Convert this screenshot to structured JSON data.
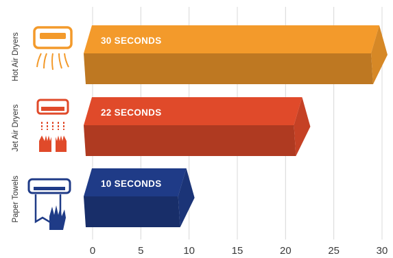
{
  "chart_data": {
    "type": "bar",
    "orientation": "horizontal",
    "style": "3d",
    "categories": [
      "Hot Air Dryers",
      "Jet Air Dryers",
      "Paper Towels"
    ],
    "values": [
      30,
      22,
      10
    ],
    "data_labels": [
      "30 SECONDS",
      "22 SECONDS",
      "10 SECONDS"
    ],
    "category_icons": [
      "hot-air-dryer-icon",
      "jet-air-dryer-icon",
      "paper-towel-dispenser-icon"
    ],
    "colors": [
      "#f39a2b",
      "#e04a2a",
      "#1f3b87"
    ],
    "xlim": [
      0,
      30
    ],
    "xticks": [
      0,
      5,
      10,
      15,
      20,
      25,
      30
    ],
    "grid": true,
    "title": "",
    "xlabel": "",
    "ylabel": ""
  }
}
